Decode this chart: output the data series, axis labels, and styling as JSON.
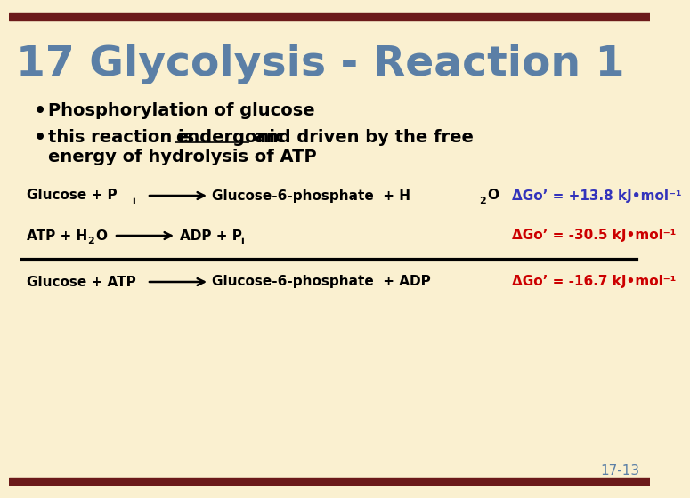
{
  "bg_color": "#FAF0D0",
  "border_color": "#6B1A1A",
  "title": "17 Glycolysis - Reaction 1",
  "title_color": "#5B7FA6",
  "bullet_color": "#000000",
  "rxn_text_color": "#000000",
  "rxn1_dg": "ΔGo’ = +13.8 kJ•mol⁻¹",
  "rxn1_dg_color": "#3333BB",
  "rxn2_dg": "ΔGo’ = -30.5 kJ•mol⁻¹",
  "rxn2_dg_color": "#CC0000",
  "rxn3_dg": "ΔGo’ = -16.7 kJ•mol⁻¹",
  "rxn3_dg_color": "#CC0000",
  "page_num": "17-13",
  "page_num_color": "#5B7FA6"
}
